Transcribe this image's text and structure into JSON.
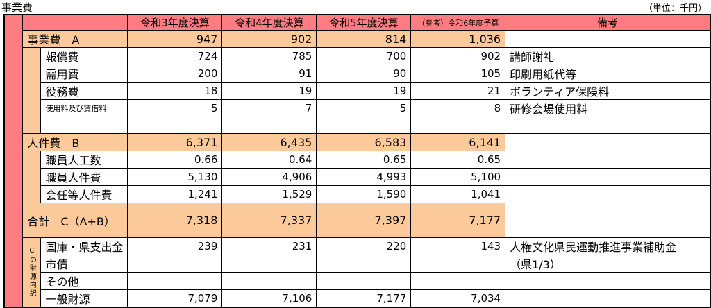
{
  "title": "事業費",
  "unit": "（単位：千円）",
  "colors": {
    "header": "#ff7c80",
    "subtotal": "#fcc99a"
  },
  "headers": [
    "令和3年度決算",
    "令和4年度決算",
    "令和5年度決算",
    "（参考）令和6年度予算",
    "備考"
  ],
  "section_a": {
    "label": "事業費　A",
    "values": [
      "947",
      "902",
      "814",
      "1,036"
    ],
    "remark": "",
    "items": [
      {
        "label": "報償費",
        "values": [
          "724",
          "785",
          "700",
          "902"
        ],
        "remark": "講師謝礼"
      },
      {
        "label": "需用費",
        "values": [
          "200",
          "91",
          "90",
          "105"
        ],
        "remark": "印刷用紙代等"
      },
      {
        "label": "役務費",
        "values": [
          "18",
          "19",
          "19",
          "21"
        ],
        "remark": "ボランティア保険料"
      },
      {
        "label": "使用料及び賃借料",
        "values": [
          "5",
          "7",
          "5",
          "8"
        ],
        "remark": "研修会場使用料"
      },
      {
        "label": "",
        "values": [
          "",
          "",
          "",
          ""
        ],
        "remark": ""
      }
    ]
  },
  "section_b": {
    "label": "人件費　B",
    "values": [
      "6,371",
      "6,435",
      "6,583",
      "6,141"
    ],
    "remark": "",
    "items": [
      {
        "label": "職員人工数",
        "values": [
          "0.66",
          "0.64",
          "0.65",
          "0.65"
        ],
        "remark": ""
      },
      {
        "label": "職員人件費",
        "values": [
          "5,130",
          "4,906",
          "4,993",
          "5,100"
        ],
        "remark": ""
      },
      {
        "label": "会任等人件費",
        "values": [
          "1,241",
          "1,529",
          "1,590",
          "1,041"
        ],
        "remark": ""
      }
    ]
  },
  "total": {
    "label": "合計　C（A+B）",
    "values": [
      "7,318",
      "7,337",
      "7,397",
      "7,177"
    ],
    "remark": ""
  },
  "funding": {
    "label": "Cの財源内訳",
    "items": [
      {
        "label": "国庫・県支出金",
        "values": [
          "239",
          "231",
          "220",
          "143"
        ],
        "remark": "人権文化県民運動推進事業補助金"
      },
      {
        "label": "市債",
        "values": [
          "",
          "",
          "",
          ""
        ],
        "remark": "（県1/3）"
      },
      {
        "label": "その他",
        "values": [
          "",
          "",
          "",
          ""
        ],
        "remark": ""
      },
      {
        "label": "一般財源",
        "values": [
          "7,079",
          "7,106",
          "7,177",
          "7,034"
        ],
        "remark": ""
      }
    ]
  }
}
